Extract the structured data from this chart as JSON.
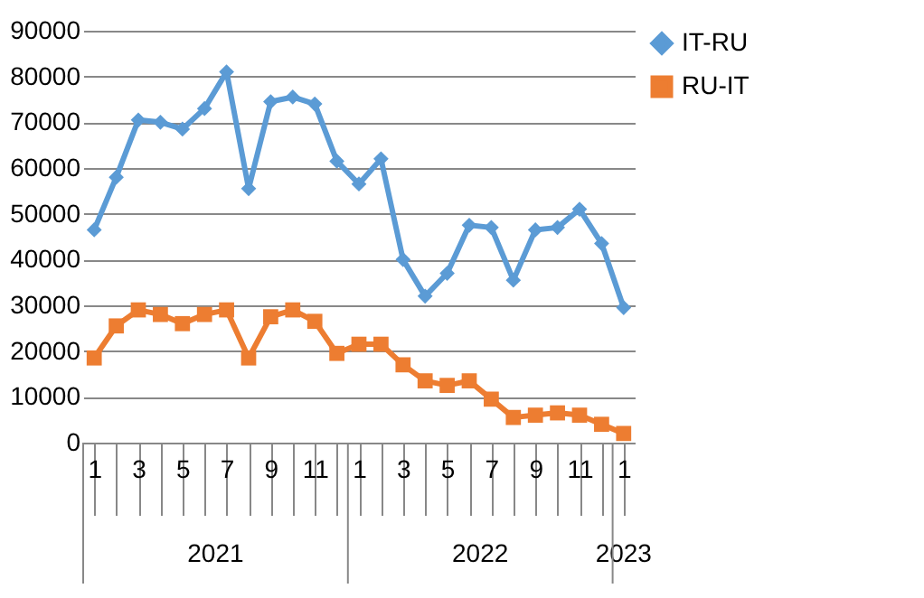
{
  "chart_data": {
    "type": "line",
    "categories": [
      "1",
      null,
      "3",
      null,
      "5",
      null,
      "7",
      null,
      "9",
      null,
      "11",
      null,
      "1",
      null,
      "3",
      null,
      "5",
      null,
      "7",
      null,
      "9",
      null,
      "11",
      null,
      "1"
    ],
    "annotations": [
      "2021",
      "2022",
      "2023"
    ],
    "series": [
      {
        "name": "IT-RU",
        "color": "#5b9bd5",
        "marker": "diamond",
        "values": [
          46500,
          58000,
          70500,
          70000,
          68500,
          73000,
          81000,
          55500,
          74500,
          75500,
          74000,
          61500,
          56500,
          62000,
          40000,
          32000,
          37000,
          47500,
          47000,
          35500,
          46500,
          47000,
          51000,
          43500,
          29500
        ]
      },
      {
        "name": "RU-IT",
        "color": "#ed7d31",
        "marker": "square",
        "values": [
          18500,
          25500,
          29000,
          28000,
          26000,
          28000,
          29000,
          18500,
          27500,
          29000,
          26500,
          19500,
          21500,
          21500,
          17000,
          13500,
          12500,
          13500,
          9500,
          5500,
          6000,
          6500,
          6000,
          4000,
          2000
        ]
      }
    ],
    "ylim": [
      0,
      90000
    ],
    "yticks": [
      0,
      10000,
      20000,
      30000,
      40000,
      50000,
      60000,
      70000,
      80000,
      90000
    ],
    "grid": "y",
    "legend": "right",
    "line_style": "solid"
  }
}
